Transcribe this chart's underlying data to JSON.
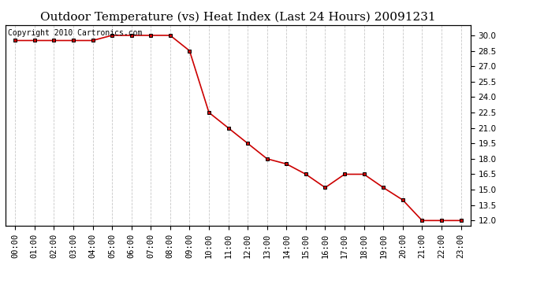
{
  "title": "Outdoor Temperature (vs) Heat Index (Last 24 Hours) 20091231",
  "copyright_text": "Copyright 2010 Cartronics.com",
  "x_labels": [
    "00:00",
    "01:00",
    "02:00",
    "03:00",
    "04:00",
    "05:00",
    "06:00",
    "07:00",
    "08:00",
    "09:00",
    "10:00",
    "11:00",
    "12:00",
    "13:00",
    "14:00",
    "15:00",
    "16:00",
    "17:00",
    "18:00",
    "19:00",
    "20:00",
    "21:00",
    "22:00",
    "23:00"
  ],
  "y_values": [
    29.5,
    29.5,
    29.5,
    29.5,
    29.5,
    30.0,
    30.0,
    30.0,
    30.0,
    28.5,
    22.5,
    21.0,
    19.5,
    18.0,
    17.5,
    16.5,
    15.2,
    16.5,
    16.5,
    15.2,
    14.0,
    12.0,
    12.0,
    12.0
  ],
  "ylim": [
    11.5,
    31.0
  ],
  "yticks": [
    12.0,
    13.5,
    15.0,
    16.5,
    18.0,
    19.5,
    21.0,
    22.5,
    24.0,
    25.5,
    27.0,
    28.5,
    30.0
  ],
  "line_color": "#cc0000",
  "marker_color": "#000000",
  "bg_color": "#ffffff",
  "grid_color": "#c8c8c8",
  "title_fontsize": 11,
  "copyright_fontsize": 7,
  "tick_fontsize": 7.5
}
